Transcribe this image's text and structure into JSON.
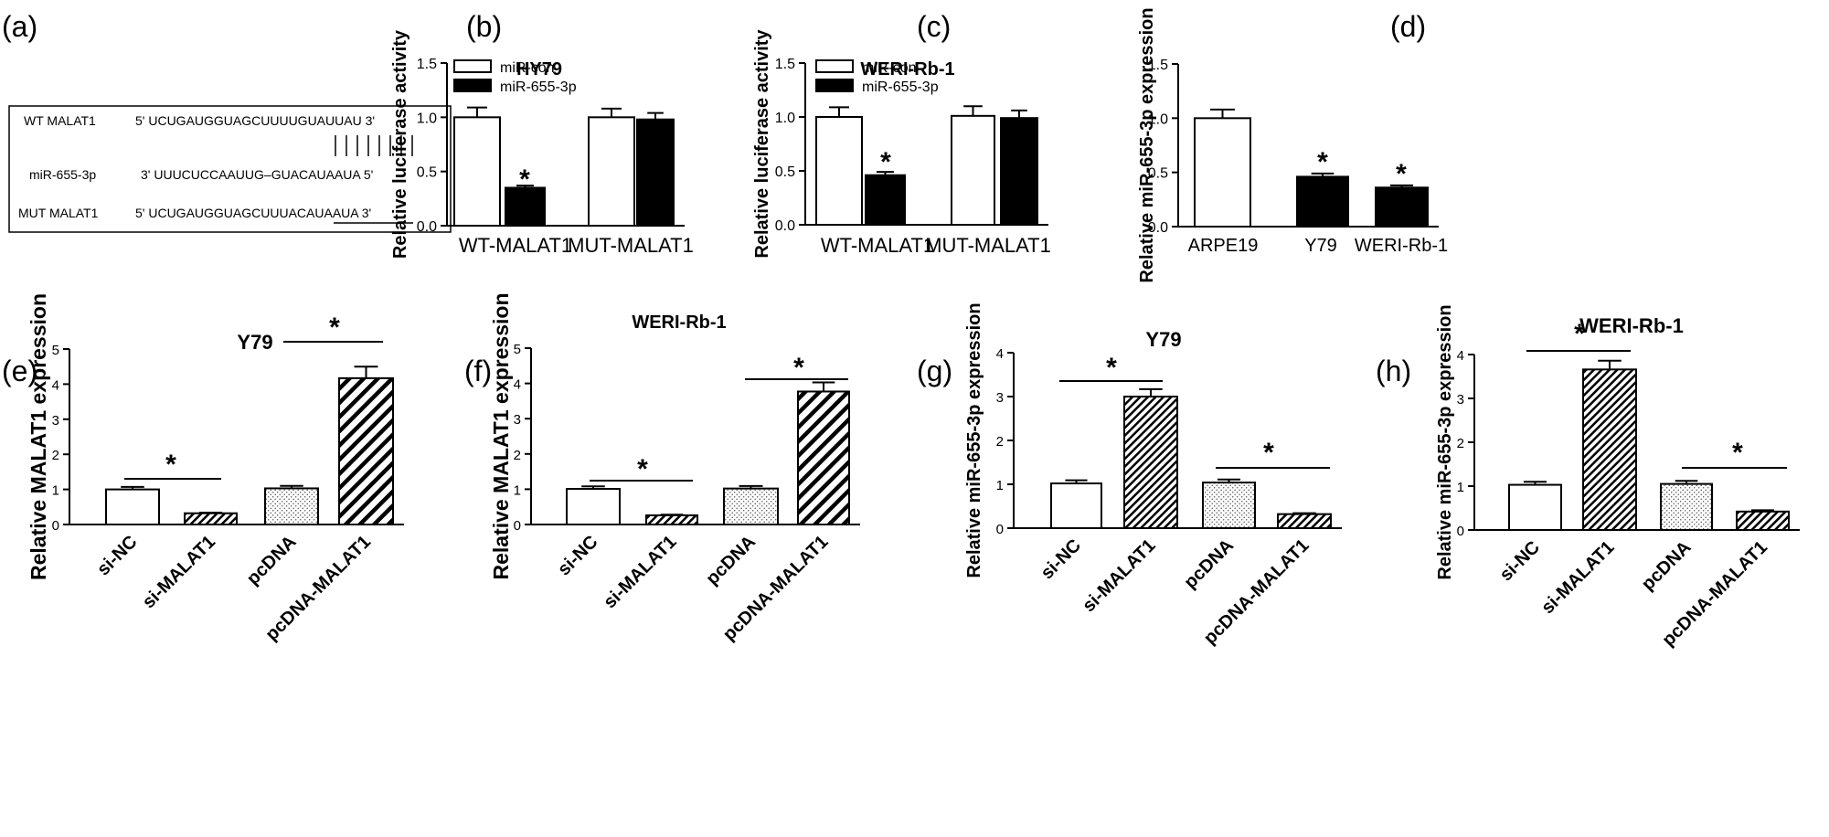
{
  "figure": {
    "panels": {
      "a": {
        "letter": "(a)",
        "rows": [
          {
            "label": "WT MALAT1",
            "seq": "5' UCUGAUGGUAGCUUUUGUAUUAU 3'"
          },
          {
            "label": "miR-655-3p",
            "seq": "3' UUUCUCCAAUUG–GUACAUAAUA 5'"
          },
          {
            "label": "MUT MALAT1",
            "seq_prefix": "5' UCUGAUGGUAGCUUUA",
            "seq_mut": "CAUAAUA",
            "seq_suffix": " 3'"
          }
        ]
      }
    }
  },
  "chart_data": [
    {
      "panel": "(b)",
      "type": "bar",
      "title": "HY79",
      "ylabel": "Relative luciferase activity",
      "ylim": [
        0,
        1.5
      ],
      "yticks": [
        "0.0",
        "0.5",
        "1.0",
        "1.5"
      ],
      "categories": [
        "WT-MALAT1",
        "MUT-MALAT1"
      ],
      "series": [
        {
          "name": "miR-con",
          "values": [
            1.0,
            1.0
          ],
          "errors": [
            0.09,
            0.08
          ]
        },
        {
          "name": "miR-655-3p",
          "values": [
            0.35,
            0.98
          ],
          "errors": [
            0.02,
            0.06
          ]
        }
      ],
      "significance": [
        "*"
      ],
      "legend": "top-left"
    },
    {
      "panel": "(c)",
      "type": "bar",
      "title": "WERI-Rb-1",
      "ylabel": "Relative luciferase activity",
      "ylim": [
        0,
        1.5
      ],
      "yticks": [
        "0.0",
        "0.5",
        "1.0",
        "1.5"
      ],
      "categories": [
        "WT-MALAT1",
        "MUT-MALAT1"
      ],
      "series": [
        {
          "name": "miR-con",
          "values": [
            1.0,
            1.01
          ],
          "errors": [
            0.09,
            0.09
          ]
        },
        {
          "name": "miR-655-3p",
          "values": [
            0.46,
            0.99
          ],
          "errors": [
            0.03,
            0.07
          ]
        }
      ],
      "significance": [
        "*"
      ],
      "legend": "top-left"
    },
    {
      "panel": "(d)",
      "type": "bar",
      "title": "",
      "ylabel": "Relative miR-655-3p expression",
      "ylim": [
        0,
        1.5
      ],
      "yticks": [
        "0.0",
        "0.5",
        "1.0",
        "1.5"
      ],
      "categories": [
        "ARPE19",
        "Y79",
        "WERI-Rb-1"
      ],
      "values": [
        1.0,
        0.46,
        0.36
      ],
      "errors": [
        0.08,
        0.03,
        0.02
      ],
      "significance": [
        "*",
        "*"
      ]
    },
    {
      "panel": "(e)",
      "type": "bar",
      "title": "Y79",
      "ylabel": "Relative MALAT1 expression",
      "ylim": [
        0,
        5
      ],
      "yticks": [
        "0",
        "1",
        "2",
        "3",
        "4",
        "5"
      ],
      "categories": [
        "si-NC",
        "si-MALAT1",
        "pcDNA",
        "pcDNA-MALAT1"
      ],
      "values": [
        1.0,
        0.32,
        1.03,
        4.17
      ],
      "errors": [
        0.07,
        0.02,
        0.07,
        0.33
      ],
      "significance": [
        "*",
        "*"
      ]
    },
    {
      "panel": "(f)",
      "type": "bar",
      "title": "WERI-Rb-1",
      "ylabel": "Relative MALAT1 expression",
      "ylim": [
        0,
        5
      ],
      "yticks": [
        "0",
        "1",
        "2",
        "3",
        "4",
        "5"
      ],
      "categories": [
        "si-NC",
        "si-MALAT1",
        "pcDNA",
        "pcDNA-MALAT1"
      ],
      "values": [
        1.01,
        0.26,
        1.02,
        3.77
      ],
      "errors": [
        0.07,
        0.02,
        0.07,
        0.26
      ],
      "significance": [
        "*",
        "*"
      ]
    },
    {
      "panel": "(g)",
      "type": "bar",
      "title": "Y79",
      "ylabel": "Relative miR-655-3p expression",
      "ylim": [
        0,
        4
      ],
      "yticks": [
        "0",
        "1",
        "2",
        "3",
        "4"
      ],
      "categories": [
        "si-NC",
        "si-MALAT1",
        "pcDNA",
        "pcDNA-MALAT1"
      ],
      "values": [
        1.02,
        3.0,
        1.04,
        0.32
      ],
      "errors": [
        0.07,
        0.17,
        0.07,
        0.02
      ],
      "significance": [
        "*",
        "*"
      ]
    },
    {
      "panel": "(h)",
      "type": "bar",
      "title": "WERI-Rb-1",
      "ylabel": "Relative miR-655-3p expression",
      "ylim": [
        0,
        4
      ],
      "yticks": [
        "0",
        "1",
        "2",
        "3",
        "4"
      ],
      "categories": [
        "si-NC",
        "si-MALAT1",
        "pcDNA",
        "pcDNA-MALAT1"
      ],
      "values": [
        1.03,
        3.66,
        1.05,
        0.42
      ],
      "errors": [
        0.07,
        0.2,
        0.07,
        0.03
      ],
      "significance": [
        "*",
        "*"
      ]
    }
  ]
}
